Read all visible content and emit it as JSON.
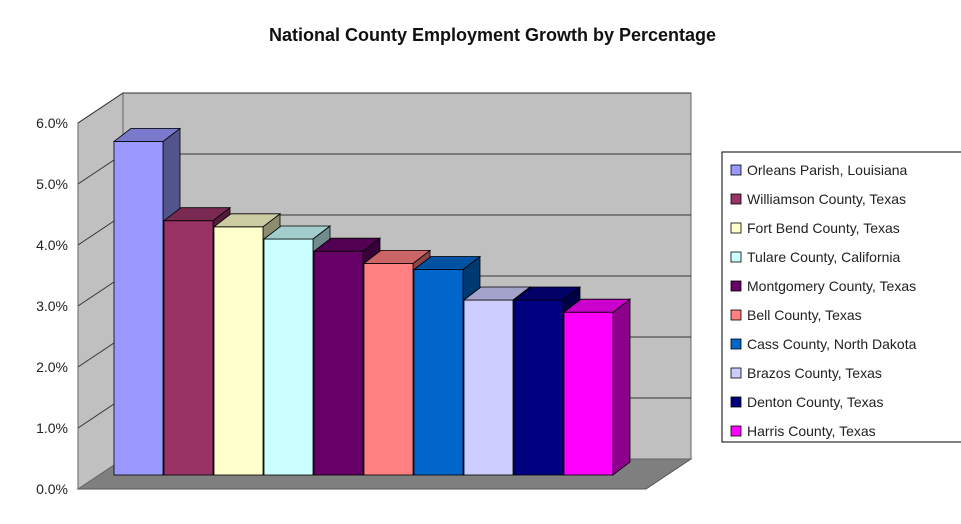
{
  "chart_data": {
    "type": "bar",
    "title": "National County Employment Growth by Percentage",
    "xlabel": "",
    "ylabel": "",
    "ylim": [
      0,
      6
    ],
    "y_ticks": [
      "0.0%",
      "1.0%",
      "2.0%",
      "3.0%",
      "4.0%",
      "5.0%",
      "6.0%"
    ],
    "grid": true,
    "legend_position": "right",
    "categories": [
      "Orleans Parish, Louisiana",
      "Williamson County, Texas",
      "Fort Bend County, Texas",
      "Tulare County, California",
      "Montgomery County, Texas",
      "Bell County, Texas",
      "Cass County, North Dakota",
      "Brazos County, Texas",
      "Denton County, Texas",
      "Harris County, Texas"
    ],
    "values": [
      5.6,
      4.3,
      4.2,
      4.0,
      3.8,
      3.6,
      3.5,
      3.0,
      3.0,
      2.8
    ],
    "colors": [
      "#9999ff",
      "#993366",
      "#ffffcc",
      "#ccffff",
      "#660066",
      "#ff8080",
      "#0066cc",
      "#ccccff",
      "#000080",
      "#ff00ff"
    ]
  }
}
